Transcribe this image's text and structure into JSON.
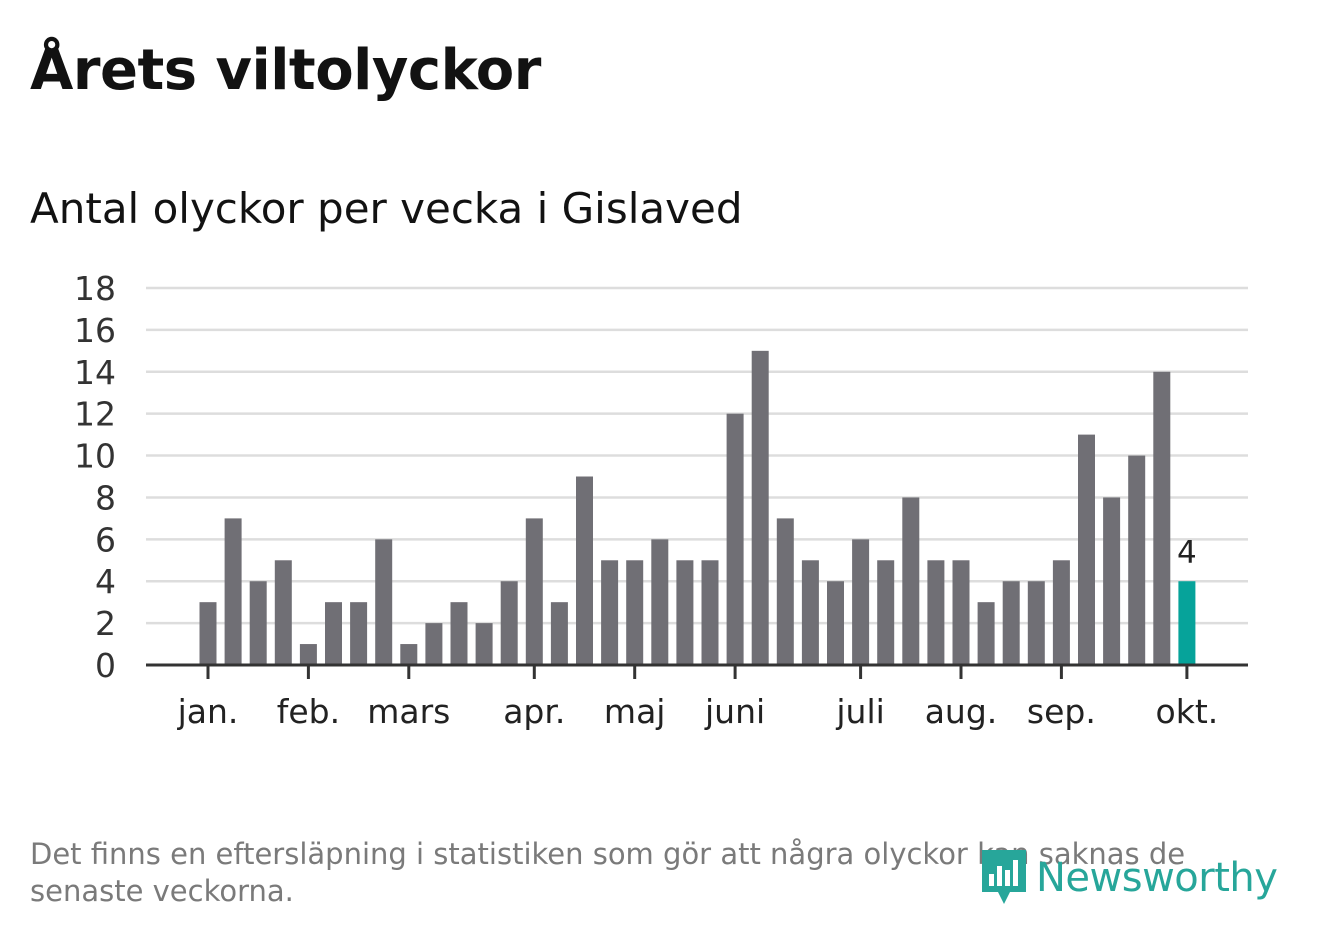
{
  "title": "Årets viltolyckor",
  "subtitle": "Antal olyckor per vecka i Gislaved",
  "footnote": "Det finns en eftersläpning i statistiken som gör att några olyckor kan saknas de senaste veckorna.",
  "brand": {
    "name": "Newsworthy",
    "color": "#27a69a"
  },
  "colors": {
    "bar": "#706f75",
    "highlight": "#06a39a",
    "grid": "#dddddd",
    "axis": "#333333"
  },
  "chart_data": {
    "type": "bar",
    "title": "Antal olyckor per vecka i Gislaved",
    "xlabel": "",
    "ylabel": "",
    "ylim": [
      0,
      18
    ],
    "yticks": [
      "0",
      "2",
      "4",
      "6",
      "8",
      "10",
      "12",
      "14",
      "16",
      "18"
    ],
    "weeks": [
      1,
      2,
      3,
      4,
      5,
      6,
      7,
      8,
      9,
      10,
      11,
      12,
      13,
      14,
      15,
      16,
      17,
      18,
      19,
      20,
      21,
      22,
      23,
      24,
      25,
      26,
      27,
      28,
      29,
      30,
      31,
      32,
      33,
      34,
      35,
      36,
      37,
      38,
      39,
      40
    ],
    "values": [
      3,
      7,
      4,
      5,
      1,
      3,
      3,
      6,
      1,
      2,
      3,
      2,
      4,
      7,
      3,
      9,
      5,
      5,
      6,
      5,
      5,
      12,
      15,
      7,
      5,
      4,
      6,
      5,
      8,
      5,
      5,
      3,
      4,
      4,
      5,
      11,
      8,
      10,
      14,
      4
    ],
    "month_ticks": [
      {
        "label": "jan.",
        "week": 1
      },
      {
        "label": "feb.",
        "week": 5
      },
      {
        "label": "mars",
        "week": 9
      },
      {
        "label": "apr.",
        "week": 14
      },
      {
        "label": "maj",
        "week": 18
      },
      {
        "label": "juni",
        "week": 22
      },
      {
        "label": "juli",
        "week": 27
      },
      {
        "label": "aug.",
        "week": 31
      },
      {
        "label": "sep.",
        "week": 35
      },
      {
        "label": "okt.",
        "week": 40
      }
    ],
    "highlight": {
      "week": 40,
      "value": 4,
      "label": "4"
    },
    "grid": true
  }
}
